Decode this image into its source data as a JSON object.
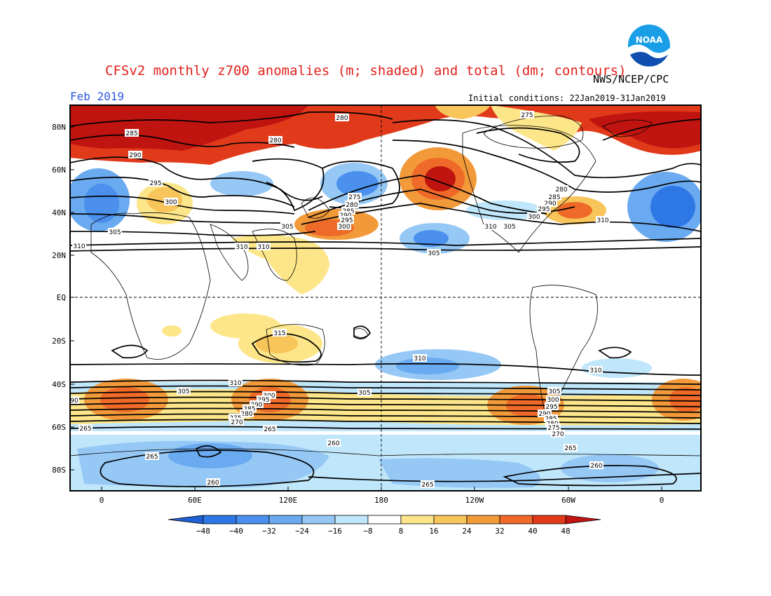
{
  "header": {
    "title": "CFSv2 monthly z700 anomalies (m; shaded) and total (dm; contours)",
    "org": "NWS/NCEP/CPC",
    "month": "Feb 2019",
    "initial_conditions": "Initial conditions: 22Jan2019-31Jan2019"
  },
  "logo": {
    "icon": "noaa-logo-icon",
    "text": "NOAA"
  },
  "axes": {
    "lat_labels": [
      "80N",
      "60N",
      "40N",
      "20N",
      "EQ",
      "20S",
      "40S",
      "60S",
      "80S"
    ],
    "lon_labels": [
      "0",
      "60E",
      "120E",
      "180",
      "120W",
      "60W",
      "0"
    ]
  },
  "colorbar": {
    "labels": [
      "−48",
      "−40",
      "−32",
      "−24",
      "−16",
      "−8",
      "8",
      "16",
      "24",
      "32",
      "40",
      "48"
    ],
    "colors": [
      "#1f5fd6",
      "#2e78e6",
      "#4a90ec",
      "#6aaaf0",
      "#96c8f6",
      "#bfe6fa",
      "#ffffff",
      "#fde68a",
      "#f8c55a",
      "#f29a3a",
      "#ef6a28",
      "#e03a1a",
      "#c01410"
    ]
  },
  "contour_labels": {
    "north": [
      "280",
      "285",
      "290",
      "295",
      "300",
      "305",
      "310",
      "275",
      "280",
      "275",
      "280",
      "285",
      "290",
      "295",
      "300",
      "305",
      "280",
      "285",
      "290",
      "295",
      "300",
      "305",
      "310",
      "305",
      "310",
      "310",
      "310"
    ],
    "south": [
      "315",
      "310",
      "310",
      "310",
      "305",
      "305",
      "300",
      "295",
      "290",
      "285",
      "280",
      "275",
      "270",
      "265",
      "265",
      "305",
      "300",
      "295",
      "290",
      "285",
      "280",
      "275",
      "270",
      "265",
      "260",
      "265",
      "260",
      "260",
      "265",
      "90"
    ]
  }
}
